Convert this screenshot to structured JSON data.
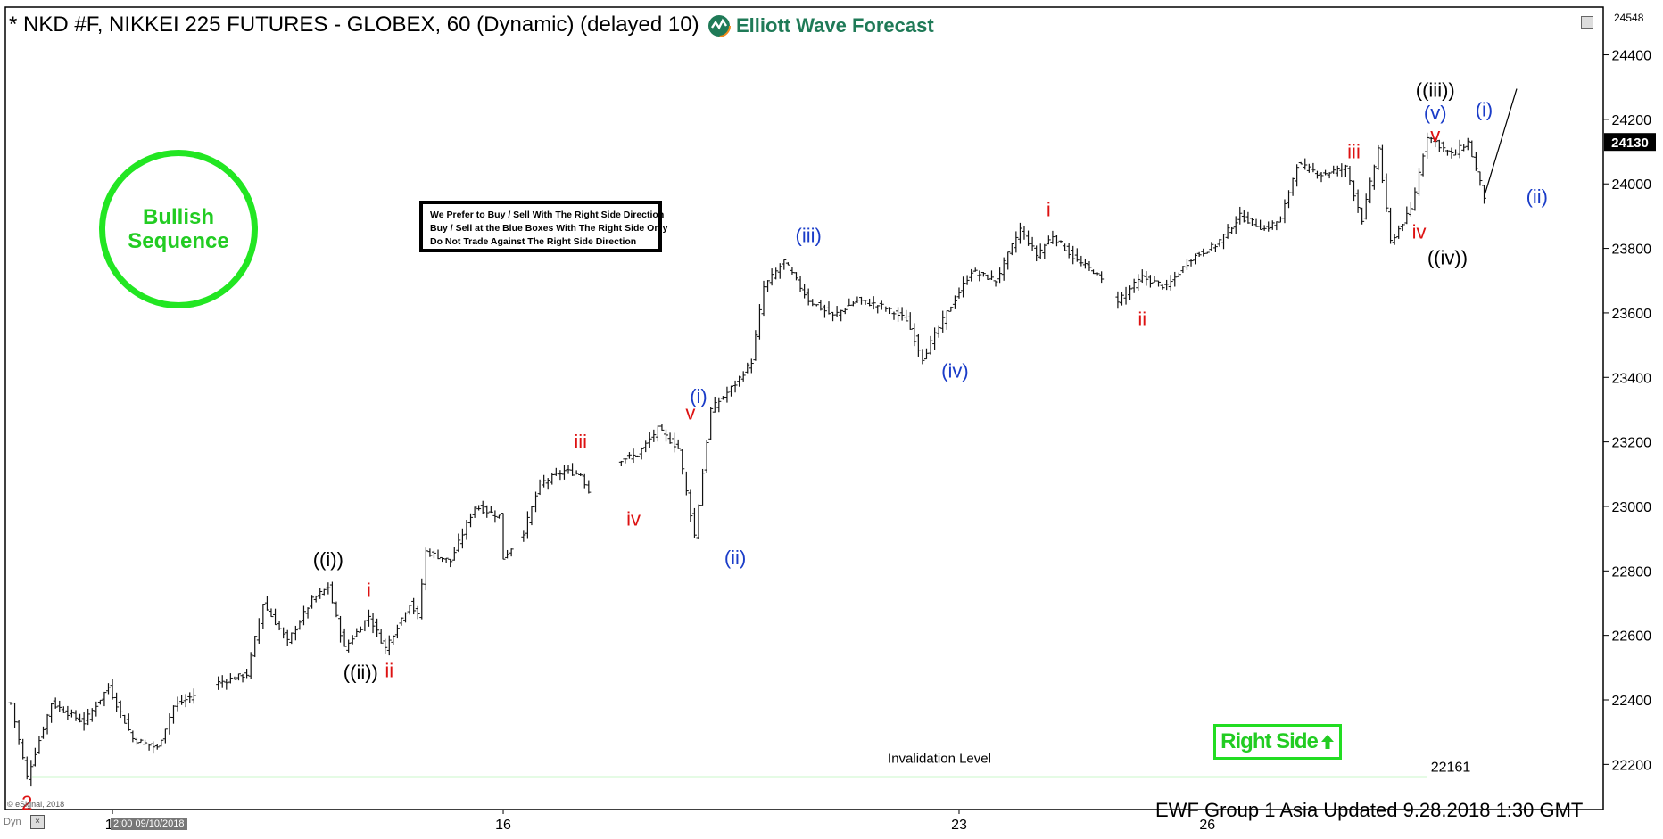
{
  "header": {
    "title": "* NKD #F, NIKKEI 225 FUTURES - GLOBEX, 60 (Dynamic) (delayed 10)",
    "logo_text": "Elliott Wave Forecast"
  },
  "annotations": {
    "bullish_line1": "Bullish",
    "bullish_line2": "Sequence",
    "note_lines": [
      "We Prefer to Buy / Sell With The Right Side Direction",
      "Buy / Sell at the Blue Boxes With The Right Side Only",
      "Do Not Trade Against The Right Side Direction"
    ],
    "right_side": "Right Side",
    "invalidation_label": "Invalidation Level",
    "invalidation_value": "22161"
  },
  "footer": {
    "text": "EWF Group 1 Asia Updated 9.28.2018 1:30 GMT",
    "esignal": "© eSignal, 2018",
    "dyn": "Dyn",
    "cursor_time": "2:00 09/10/2018"
  },
  "colors": {
    "black_label": "#000000",
    "blue_label": "#1a3cc8",
    "red_label": "#dd1111",
    "green": "#22dd22",
    "invalidation_line": "#33dd33"
  },
  "chart_data": {
    "type": "ohlc",
    "symbol": "NKD #F",
    "interval": "60",
    "ylim": [
      22060,
      24548
    ],
    "y_ticks": [
      22200,
      22400,
      22600,
      22800,
      23000,
      23200,
      23400,
      23600,
      23800,
      24000,
      24200,
      24400
    ],
    "y_top_label": "24548",
    "last_price": "24130",
    "x_ticks": [
      "11",
      "16",
      "23",
      "26"
    ],
    "invalidation_level": 22161,
    "price_path": [
      {
        "bar": 0,
        "price": 22390
      },
      {
        "bar": 4,
        "price": 22161
      },
      {
        "bar": 10,
        "price": 22390
      },
      {
        "bar": 18,
        "price": 22330
      },
      {
        "bar": 24,
        "price": 22440
      },
      {
        "bar": 30,
        "price": 22280
      },
      {
        "bar": 36,
        "price": 22250
      },
      {
        "bar": 40,
        "price": 22380
      },
      {
        "bar": 50,
        "price": 22450
      },
      {
        "bar": 58,
        "price": 22480
      },
      {
        "bar": 62,
        "price": 22700
      },
      {
        "bar": 68,
        "price": 22580
      },
      {
        "bar": 74,
        "price": 22710
      },
      {
        "bar": 78,
        "price": 22750
      },
      {
        "bar": 82,
        "price": 22560
      },
      {
        "bar": 88,
        "price": 22660
      },
      {
        "bar": 92,
        "price": 22560
      },
      {
        "bar": 98,
        "price": 22700
      },
      {
        "bar": 100,
        "price": 22660
      },
      {
        "bar": 102,
        "price": 22860
      },
      {
        "bar": 108,
        "price": 22830
      },
      {
        "bar": 114,
        "price": 23000
      },
      {
        "bar": 120,
        "price": 22970
      },
      {
        "bar": 121,
        "price": 22840
      },
      {
        "bar": 126,
        "price": 22920
      },
      {
        "bar": 130,
        "price": 23070
      },
      {
        "bar": 136,
        "price": 23110
      },
      {
        "bar": 140,
        "price": 23100
      },
      {
        "bar": 143,
        "price": 23020
      },
      {
        "bar": 148,
        "price": 23140
      },
      {
        "bar": 154,
        "price": 23160
      },
      {
        "bar": 159,
        "price": 23240
      },
      {
        "bar": 164,
        "price": 23180
      },
      {
        "bar": 168,
        "price": 22910
      },
      {
        "bar": 172,
        "price": 23300
      },
      {
        "bar": 178,
        "price": 23380
      },
      {
        "bar": 182,
        "price": 23450
      },
      {
        "bar": 185,
        "price": 23680
      },
      {
        "bar": 190,
        "price": 23760
      },
      {
        "bar": 196,
        "price": 23640
      },
      {
        "bar": 202,
        "price": 23590
      },
      {
        "bar": 208,
        "price": 23640
      },
      {
        "bar": 214,
        "price": 23620
      },
      {
        "bar": 220,
        "price": 23580
      },
      {
        "bar": 224,
        "price": 23460
      },
      {
        "bar": 230,
        "price": 23600
      },
      {
        "bar": 236,
        "price": 23730
      },
      {
        "bar": 242,
        "price": 23700
      },
      {
        "bar": 248,
        "price": 23860
      },
      {
        "bar": 252,
        "price": 23780
      },
      {
        "bar": 256,
        "price": 23840
      },
      {
        "bar": 262,
        "price": 23760
      },
      {
        "bar": 266,
        "price": 23730
      },
      {
        "bar": 272,
        "price": 23640
      },
      {
        "bar": 278,
        "price": 23710
      },
      {
        "bar": 284,
        "price": 23680
      },
      {
        "bar": 290,
        "price": 23770
      },
      {
        "bar": 296,
        "price": 23810
      },
      {
        "bar": 302,
        "price": 23900
      },
      {
        "bar": 308,
        "price": 23860
      },
      {
        "bar": 312,
        "price": 23890
      },
      {
        "bar": 316,
        "price": 24060
      },
      {
        "bar": 322,
        "price": 24030
      },
      {
        "bar": 328,
        "price": 24050
      },
      {
        "bar": 332,
        "price": 23890
      },
      {
        "bar": 336,
        "price": 24110
      },
      {
        "bar": 339,
        "price": 23820
      },
      {
        "bar": 344,
        "price": 23920
      },
      {
        "bar": 348,
        "price": 24150
      },
      {
        "bar": 354,
        "price": 24090
      },
      {
        "bar": 358,
        "price": 24130
      },
      {
        "bar": 362,
        "price": 23960
      }
    ],
    "projection": {
      "from_bar": 362,
      "from_price": 23960,
      "to_bar": 370,
      "to_price": 24295
    },
    "wave_labels": [
      {
        "text": "2",
        "color": "red",
        "bar": 4,
        "price": 22060
      },
      {
        "text": "((i))",
        "color": "black",
        "bar": 78,
        "price": 22815
      },
      {
        "text": "((ii))",
        "color": "black",
        "bar": 86,
        "price": 22465
      },
      {
        "text": "i",
        "color": "red",
        "bar": 88,
        "price": 22720
      },
      {
        "text": "ii",
        "color": "red",
        "bar": 93,
        "price": 22470
      },
      {
        "text": "iii",
        "color": "red",
        "bar": 140,
        "price": 23180
      },
      {
        "text": "iv",
        "color": "red",
        "bar": 153,
        "price": 22940
      },
      {
        "text": "(i)",
        "color": "blue",
        "bar": 169,
        "price": 23320
      },
      {
        "text": "v",
        "color": "red",
        "bar": 167,
        "price": 23270
      },
      {
        "text": "(ii)",
        "color": "blue",
        "bar": 178,
        "price": 22820
      },
      {
        "text": "(iii)",
        "color": "blue",
        "bar": 196,
        "price": 23820
      },
      {
        "text": "(iv)",
        "color": "blue",
        "bar": 232,
        "price": 23400
      },
      {
        "text": "i",
        "color": "red",
        "bar": 255,
        "price": 23900
      },
      {
        "text": "ii",
        "color": "red",
        "bar": 278,
        "price": 23560
      },
      {
        "text": "iii",
        "color": "red",
        "bar": 330,
        "price": 24080
      },
      {
        "text": "iv",
        "color": "red",
        "bar": 346,
        "price": 23830
      },
      {
        "text": "((iii))",
        "color": "black",
        "bar": 350,
        "price": 24270
      },
      {
        "text": "(v)",
        "color": "blue",
        "bar": 350,
        "price": 24200
      },
      {
        "text": "v",
        "color": "red",
        "bar": 350,
        "price": 24130
      },
      {
        "text": "((iv))",
        "color": "black",
        "bar": 353,
        "price": 23750
      },
      {
        "text": "(i)",
        "color": "blue",
        "bar": 362,
        "price": 24210
      },
      {
        "text": "(ii)",
        "color": "blue",
        "bar": 375,
        "price": 23940
      }
    ]
  }
}
